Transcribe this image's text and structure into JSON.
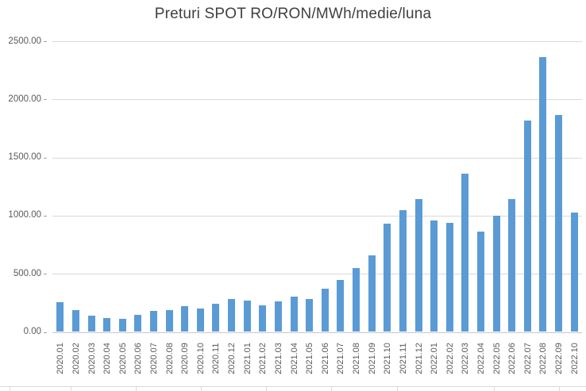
{
  "chart_data": {
    "type": "bar",
    "title": "Preturi SPOT RO/RON/MWh/medie/luna",
    "xlabel": "",
    "ylabel": "",
    "ylim": [
      0,
      2500
    ],
    "y_tick_interval": 500,
    "y_tick_labels": [
      "0.00",
      "500.00",
      "1000.00",
      "1500.00",
      "2000.00",
      "2500.00"
    ],
    "grid": "horizontal",
    "legend": "none",
    "bar_color": "#5B9BD5",
    "gridline_color": "#D9D9D9",
    "axis_text_color": "#595959",
    "title_color": "#404040",
    "categories": [
      "2020.01",
      "2020.02",
      "2020.03",
      "2020.04",
      "2020.05",
      "2020.06",
      "2020.07",
      "2020.08",
      "2020.09",
      "2020.10",
      "2020.11",
      "2020.12",
      "2021.01",
      "2021.02",
      "2021.03",
      "2021.04",
      "2021.05",
      "2021.06",
      "2021.07",
      "2021.08",
      "2021.09",
      "2021.10",
      "2021.11",
      "2021.12",
      "2022.01",
      "2022.02",
      "2022.03",
      "2022.04",
      "2022.05",
      "2022.06",
      "2022.07",
      "2022.08",
      "2022.09",
      "2022.10"
    ],
    "values": [
      255,
      190,
      140,
      120,
      110,
      150,
      180,
      185,
      220,
      200,
      240,
      280,
      270,
      230,
      260,
      305,
      280,
      370,
      450,
      550,
      660,
      930,
      1050,
      1140,
      955,
      940,
      1360,
      860,
      1000,
      1140,
      1820,
      2365,
      1865,
      1025
    ]
  }
}
